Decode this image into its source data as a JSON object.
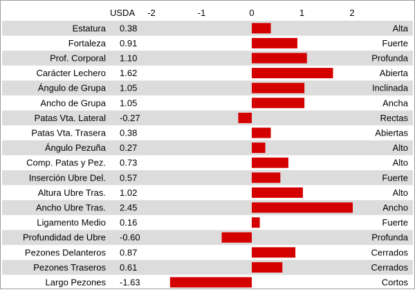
{
  "chart_data": {
    "type": "bar",
    "orientation": "horizontal",
    "value_header": "USDA",
    "x_ticks": [
      -2,
      -1,
      0,
      1,
      2
    ],
    "xlim": [
      -2.0,
      2.0
    ],
    "grid": false,
    "bar_color": "#d40000",
    "stripe_color": "#dcdcdc",
    "rows": [
      {
        "trait": "Estatura",
        "value": 0.38,
        "value_label": "0.38",
        "descriptor": "Alta"
      },
      {
        "trait": "Fortaleza",
        "value": 0.91,
        "value_label": "0.91",
        "descriptor": "Fuerte"
      },
      {
        "trait": "Prof. Corporal",
        "value": 1.1,
        "value_label": "1.10",
        "descriptor": "Profunda"
      },
      {
        "trait": "Carácter Lechero",
        "value": 1.62,
        "value_label": "1.62",
        "descriptor": "Abierta"
      },
      {
        "trait": "Ángulo de Grupa",
        "value": 1.05,
        "value_label": "1.05",
        "descriptor": "Inclinada"
      },
      {
        "trait": "Ancho de Grupa",
        "value": 1.05,
        "value_label": "1.05",
        "descriptor": "Ancha"
      },
      {
        "trait": "Patas Vta. Lateral",
        "value": -0.27,
        "value_label": "-0.27",
        "descriptor": "Rectas"
      },
      {
        "trait": "Patas Vta. Trasera",
        "value": 0.38,
        "value_label": "0.38",
        "descriptor": "Abiertas"
      },
      {
        "trait": "Ángulo Pezuña",
        "value": 0.27,
        "value_label": "0.27",
        "descriptor": "Alto"
      },
      {
        "trait": "Comp. Patas y Pez.",
        "value": 0.73,
        "value_label": "0.73",
        "descriptor": "Alto"
      },
      {
        "trait": "Inserción Ubre Del.",
        "value": 0.57,
        "value_label": "0.57",
        "descriptor": "Fuerte"
      },
      {
        "trait": "Altura Ubre Tras.",
        "value": 1.02,
        "value_label": "1.02",
        "descriptor": "Alto"
      },
      {
        "trait": "Ancho Ubre Tras.",
        "value": 2.45,
        "value_label": "2.45",
        "descriptor": "Ancho"
      },
      {
        "trait": "Ligamento Medio",
        "value": 0.16,
        "value_label": "0.16",
        "descriptor": "Fuerte"
      },
      {
        "trait": "Profundidad de Ubre",
        "value": -0.6,
        "value_label": "-0.60",
        "descriptor": "Profunda"
      },
      {
        "trait": "Pezones Delanteros",
        "value": 0.87,
        "value_label": "0.87",
        "descriptor": "Cerrados"
      },
      {
        "trait": "Pezones Traseros",
        "value": 0.61,
        "value_label": "0.61",
        "descriptor": "Cerrados"
      },
      {
        "trait": "Largo Pezones",
        "value": -1.63,
        "value_label": "-1.63",
        "descriptor": "Cortos"
      }
    ]
  }
}
